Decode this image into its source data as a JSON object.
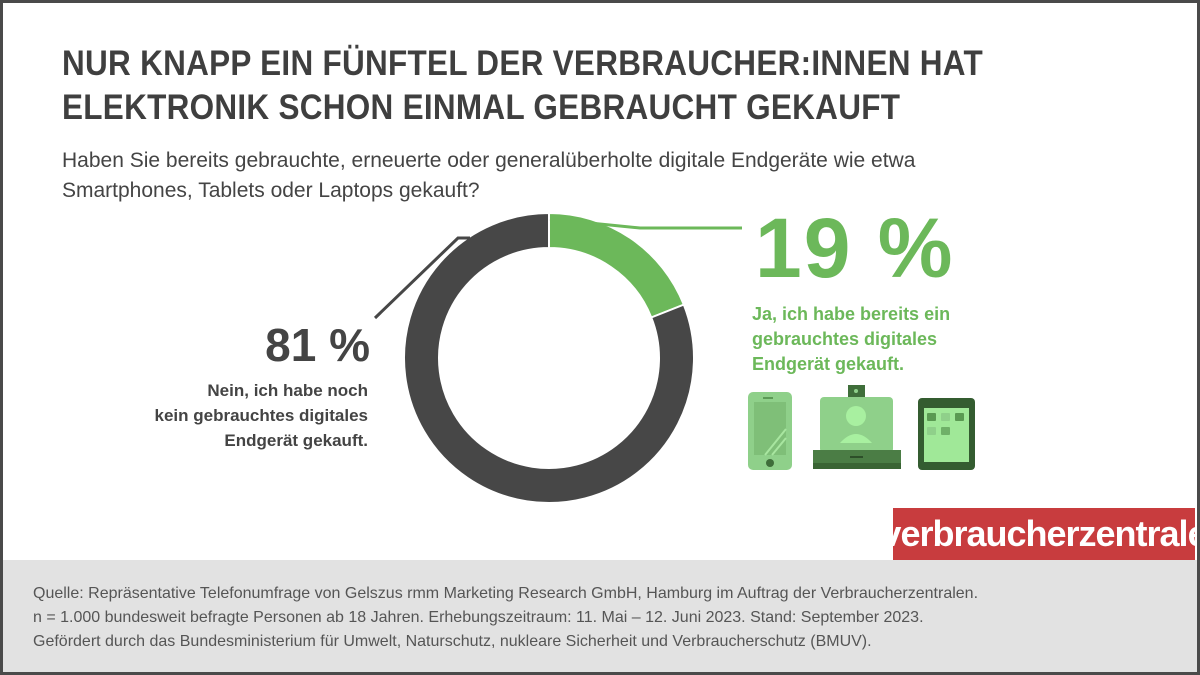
{
  "title_lines": [
    "NUR KNAPP EIN FÜNFTEL DER VERBRAUCHER:INNEN HAT",
    "ELEKTRONIK SCHON EINMAL GEBRAUCHT GEKAUFT"
  ],
  "subtitle_lines": [
    "Haben Sie bereits gebrauchte, erneuerte oder generalüberholte digitale Endgeräte wie etwa",
    "Smartphones, Tablets oder Laptops gekauft?"
  ],
  "chart_data": {
    "type": "pie",
    "donut": true,
    "slices": [
      {
        "label_lines": [
          "Ja, ich habe bereits ein",
          "gebrauchtes digitales",
          "Endgerät gekauft."
        ],
        "value": 19,
        "display": "19 %",
        "color": "#6cb85a"
      },
      {
        "label_lines": [
          "Nein, ich habe noch",
          "kein gebrauchtes digitales",
          "Endgerät gekauft."
        ],
        "value": 81,
        "display": "81 %",
        "color": "#474747"
      }
    ]
  },
  "icons": [
    "smartphone-icon",
    "laptop-icon",
    "tablet-icon"
  ],
  "logo": "verbraucherzentrale",
  "colors": {
    "brand": "#c83c3e",
    "green": "#6cb85a",
    "dark": "#474747",
    "footer_bg": "#e2e2e2"
  },
  "footer_lines": [
    "Quelle: Repräsentative  Telefonumfrage von Gelszus rmm Marketing Research GmbH, Hamburg im Auftrag der Verbraucherzentralen.",
    "n = 1.000 bundesweit befragte Personen ab 18 Jahren. Erhebungszeitraum: 11. Mai – 12. Juni 2023. Stand: September 2023.",
    "Gefördert durch das Bundesministerium  für Umwelt, Naturschutz,  nukleare Sicherheit und Verbraucherschutz (BMUV)."
  ]
}
